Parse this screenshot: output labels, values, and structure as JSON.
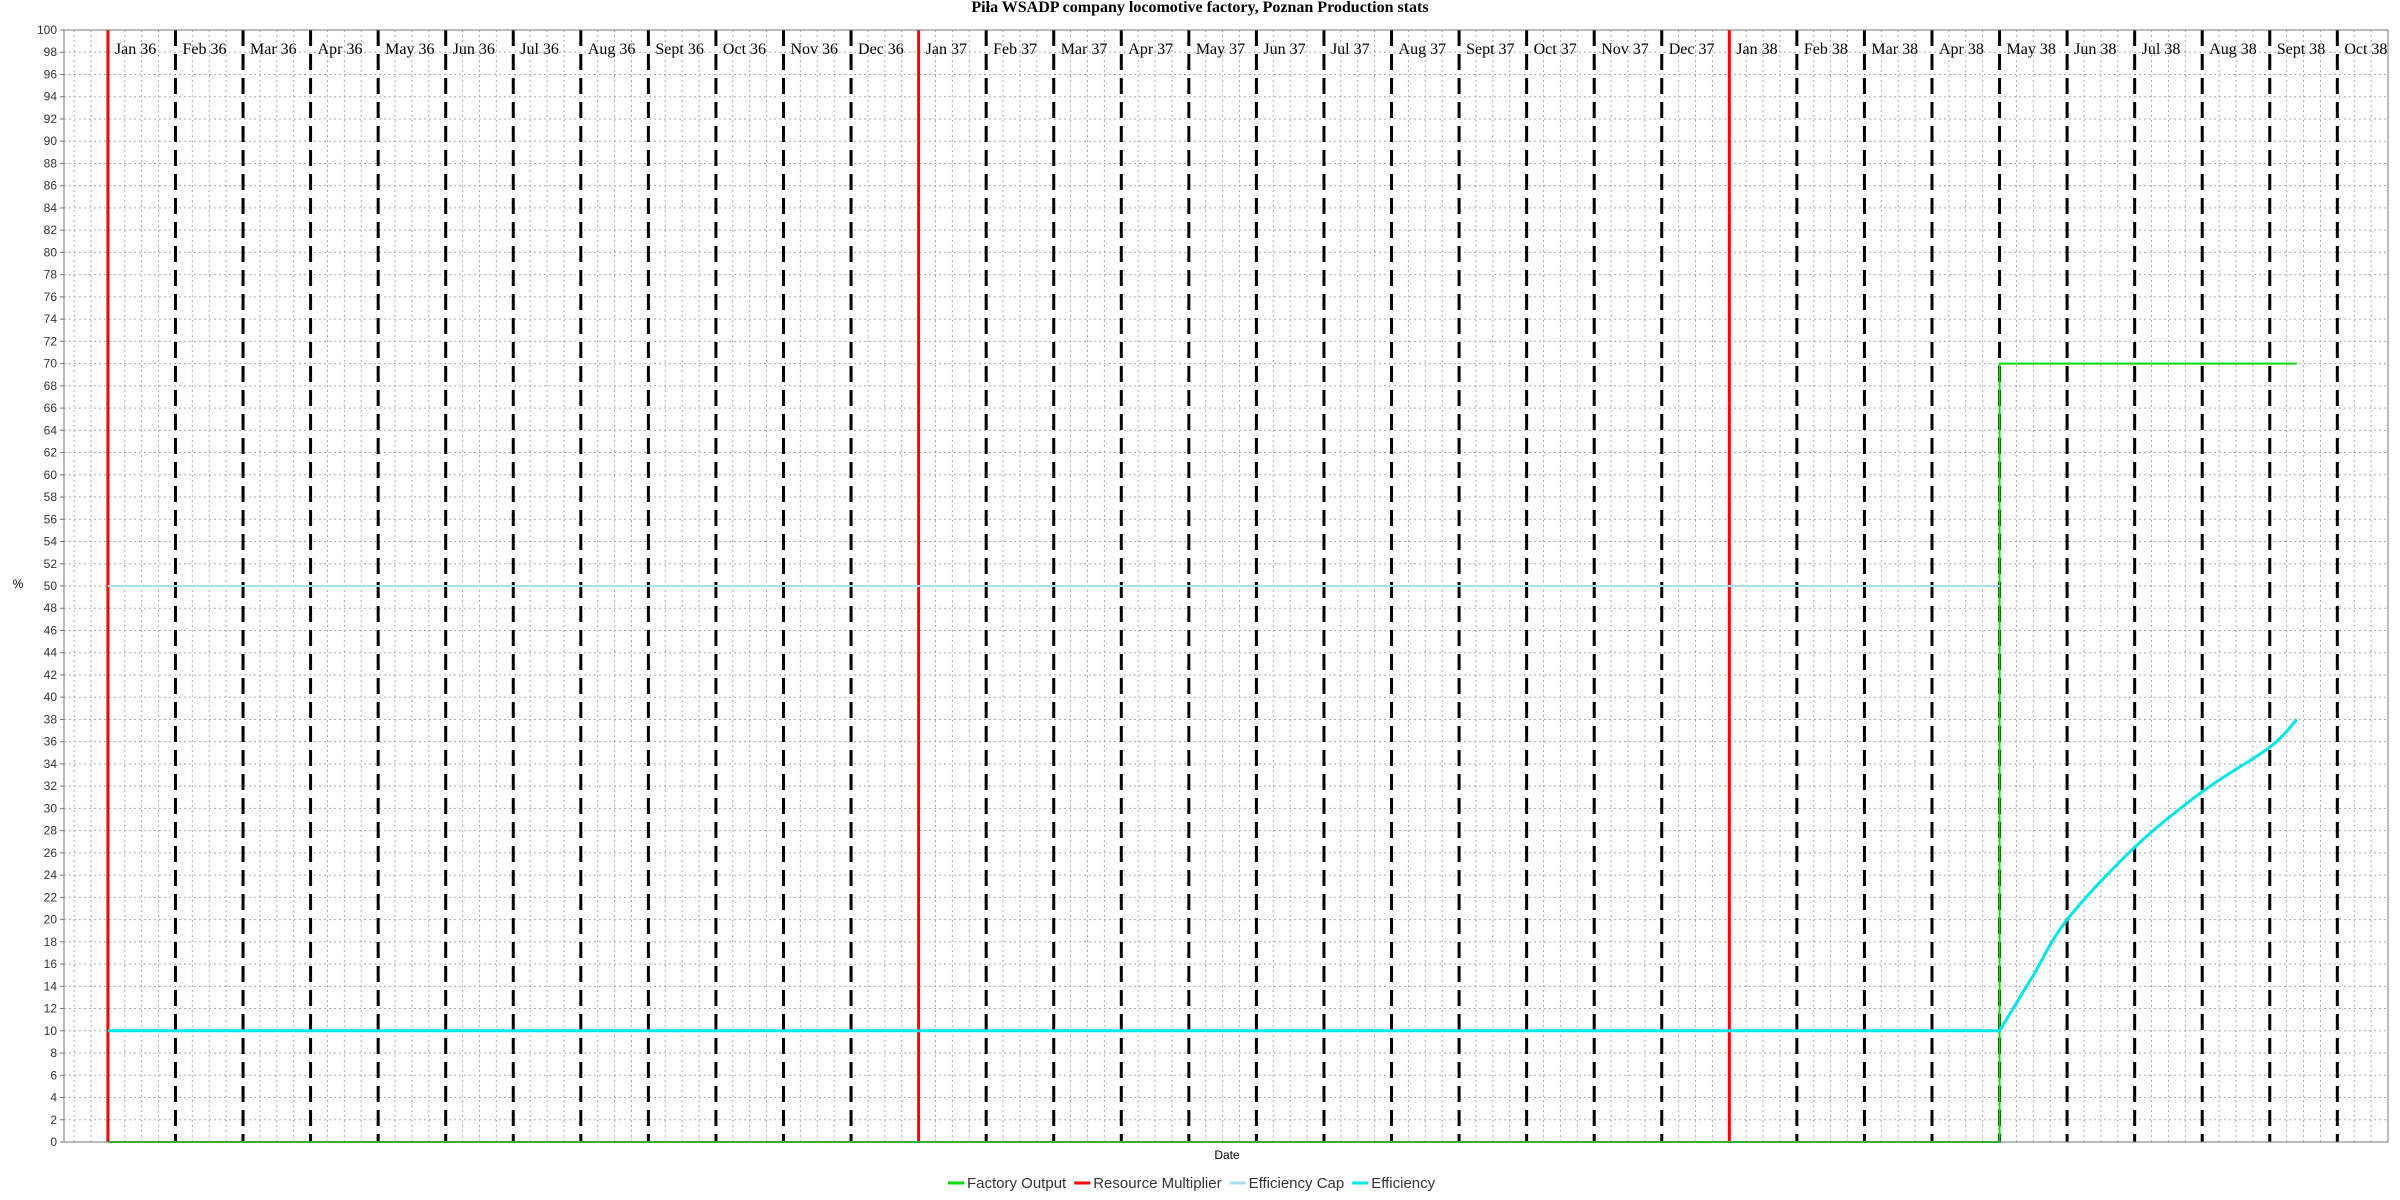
{
  "chart_data": {
    "type": "line",
    "title": "Piła WSADP company locomotive factory, Poznan Production stats",
    "xlabel": "Date",
    "ylabel": "%",
    "ylim": [
      0,
      100
    ],
    "ytick_step": 2,
    "xlim": [
      -0.65,
      33.75
    ],
    "months": [
      "Jan 36",
      "Feb 36",
      "Mar 36",
      "Apr 36",
      "May 36",
      "Jun 36",
      "Jul 36",
      "Aug 36",
      "Sept 36",
      "Oct 36",
      "Nov 36",
      "Dec 36",
      "Jan 37",
      "Feb 37",
      "Mar 37",
      "Apr 37",
      "May 37",
      "Jun 37",
      "Jul 37",
      "Aug 37",
      "Sept 37",
      "Oct 37",
      "Nov 37",
      "Dec 37",
      "Jan 38",
      "Feb 38",
      "Mar 38",
      "Apr 38",
      "May 38",
      "Jun 38",
      "Jul 38",
      "Aug 38",
      "Sept 38",
      "Oct 38"
    ],
    "year_start_markers": [
      0,
      12,
      24
    ],
    "series": [
      {
        "name": "Factory Output",
        "color": "#00dd00",
        "width": 2,
        "x": [
          0,
          28,
          28,
          32.4
        ],
        "y": [
          0,
          0,
          70,
          70
        ]
      },
      {
        "name": "Resource Multiplier",
        "color": "#ff0000",
        "width": 3,
        "x": [],
        "y": []
      },
      {
        "name": "Efficiency Cap",
        "color": "#aaddee",
        "width": 2,
        "x": [
          0,
          28
        ],
        "y": [
          50,
          50
        ]
      },
      {
        "name": "Efficiency",
        "color": "#00e5e5",
        "width": 3,
        "x": [
          0,
          28,
          28.5,
          29,
          30,
          31,
          32,
          32.4
        ],
        "y": [
          10,
          10,
          15,
          20,
          26.5,
          31.5,
          35.5,
          38
        ]
      }
    ]
  }
}
